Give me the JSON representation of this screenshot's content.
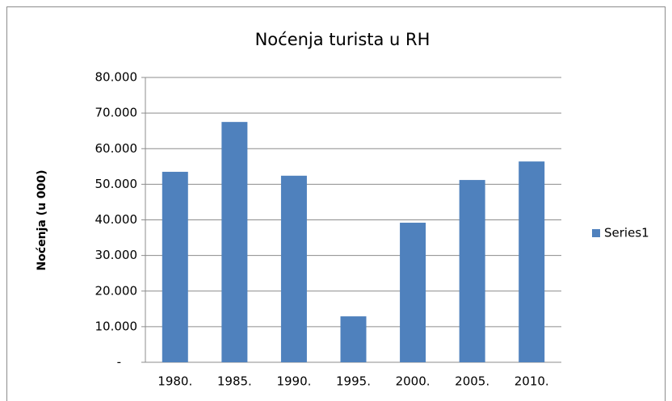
{
  "chart_data": {
    "type": "bar",
    "title": "Noćenja turista u RH",
    "y_label": "Noćenja (u 000)",
    "categories": [
      "1980.",
      "1985.",
      "1990.",
      "1995.",
      "2000.",
      "2005.",
      "2010."
    ],
    "series": [
      {
        "name": "Series1",
        "color": "#4f81bd",
        "values": [
          53500,
          67500,
          52400,
          12900,
          39200,
          51200,
          56400
        ]
      }
    ],
    "ylim": [
      0,
      80000
    ],
    "yticks": [
      {
        "value": 0,
        "label": "-"
      },
      {
        "value": 10000,
        "label": "10.000"
      },
      {
        "value": 20000,
        "label": "20.000"
      },
      {
        "value": 30000,
        "label": "30.000"
      },
      {
        "value": 40000,
        "label": "40.000"
      },
      {
        "value": 50000,
        "label": "50.000"
      },
      {
        "value": 60000,
        "label": "60.000"
      },
      {
        "value": 70000,
        "label": "70.000"
      },
      {
        "value": 80000,
        "label": "80.000"
      }
    ],
    "grid": true,
    "legend": "right"
  }
}
